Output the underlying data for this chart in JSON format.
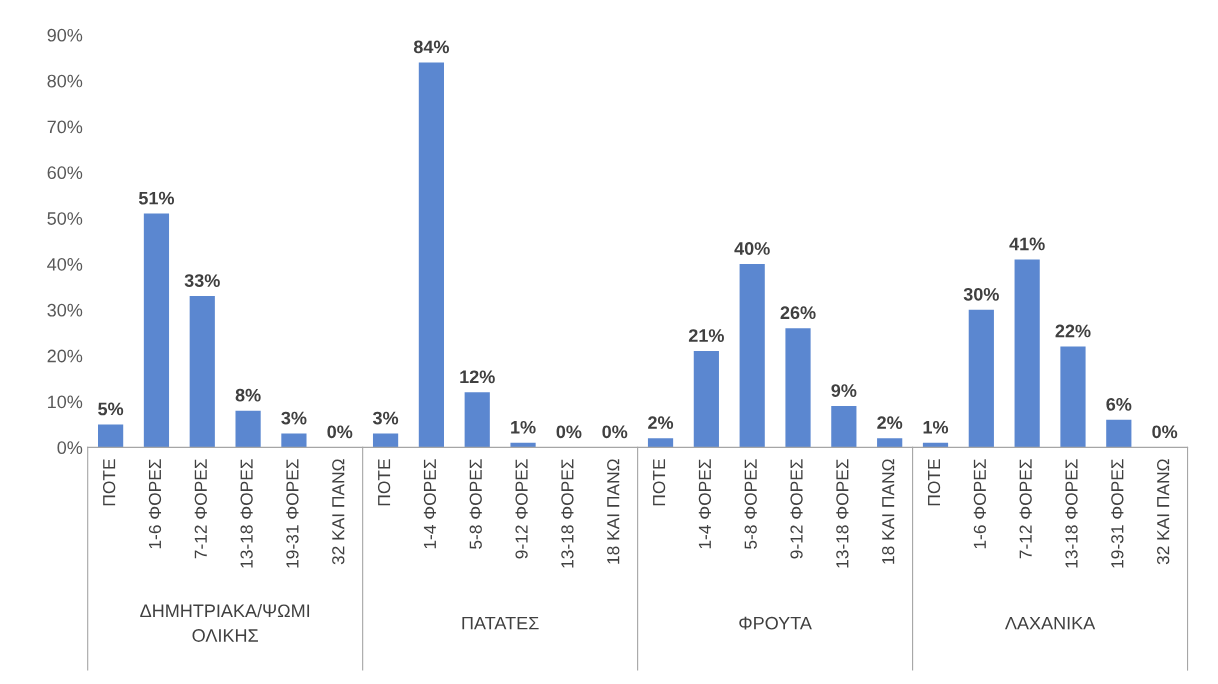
{
  "chart_data": {
    "type": "bar",
    "categories": [
      "ΠΟΤΕ",
      "1-6 ΦΟΡΕΣ",
      "7-12 ΦΟΡΕΣ",
      "13-18 ΦΟΡΕΣ",
      "19-31 ΦΟΡΕΣ",
      "32 ΚΑΙ ΠΑΝΩ",
      "ΠΟΤΕ",
      "1-4 ΦΟΡΕΣ",
      "5-8 ΦΟΡΕΣ",
      "9-12 ΦΟΡΕΣ",
      "13-18 ΦΟΡΕΣ",
      "18 ΚΑΙ ΠΑΝΩ",
      "ΠΟΤΕ",
      "1-4 ΦΟΡΕΣ",
      "5-8 ΦΟΡΕΣ",
      "9-12 ΦΟΡΕΣ",
      "13-18 ΦΟΡΕΣ",
      "18 ΚΑΙ ΠΑΝΩ",
      "ΠΟΤΕ",
      "1-6 ΦΟΡΕΣ",
      "7-12 ΦΟΡΕΣ",
      "13-18 ΦΟΡΕΣ",
      "19-31 ΦΟΡΕΣ",
      "32 ΚΑΙ ΠΑΝΩ"
    ],
    "values": [
      5,
      51,
      33,
      8,
      3,
      0,
      3,
      84,
      12,
      1,
      0,
      0,
      2,
      21,
      40,
      26,
      9,
      2,
      1,
      30,
      41,
      22,
      6,
      0
    ],
    "value_labels": [
      "5%",
      "51%",
      "33%",
      "8%",
      "3%",
      "0%",
      "3%",
      "84%",
      "12%",
      "1%",
      "0%",
      "0%",
      "2%",
      "21%",
      "40%",
      "26%",
      "9%",
      "2%",
      "1%",
      "30%",
      "41%",
      "22%",
      "6%",
      "0%"
    ],
    "color": "#5b87d0",
    "annotations": [
      "ΔΗΜΗΤΡΙΑΚΑ/ΨΩΜΙ\nΟΛΙΚΗΣ",
      "ΠΑΤΑΤΕΣ",
      "ΦΡΟΥΤΑ",
      "ΛΑΧΑΝΙΚΑ"
    ],
    "ylim": [
      0,
      90
    ],
    "yticks": [
      {
        "value": 0,
        "label": "0%"
      },
      {
        "value": 10,
        "label": "10%"
      },
      {
        "value": 20,
        "label": "20%"
      },
      {
        "value": 30,
        "label": "30%"
      },
      {
        "value": 40,
        "label": "40%"
      },
      {
        "value": 50,
        "label": "50%"
      },
      {
        "value": 60,
        "label": "60%"
      },
      {
        "value": 70,
        "label": "70%"
      },
      {
        "value": 80,
        "label": "80%"
      },
      {
        "value": 90,
        "label": "90%"
      }
    ],
    "grid": false,
    "legend": false
  }
}
